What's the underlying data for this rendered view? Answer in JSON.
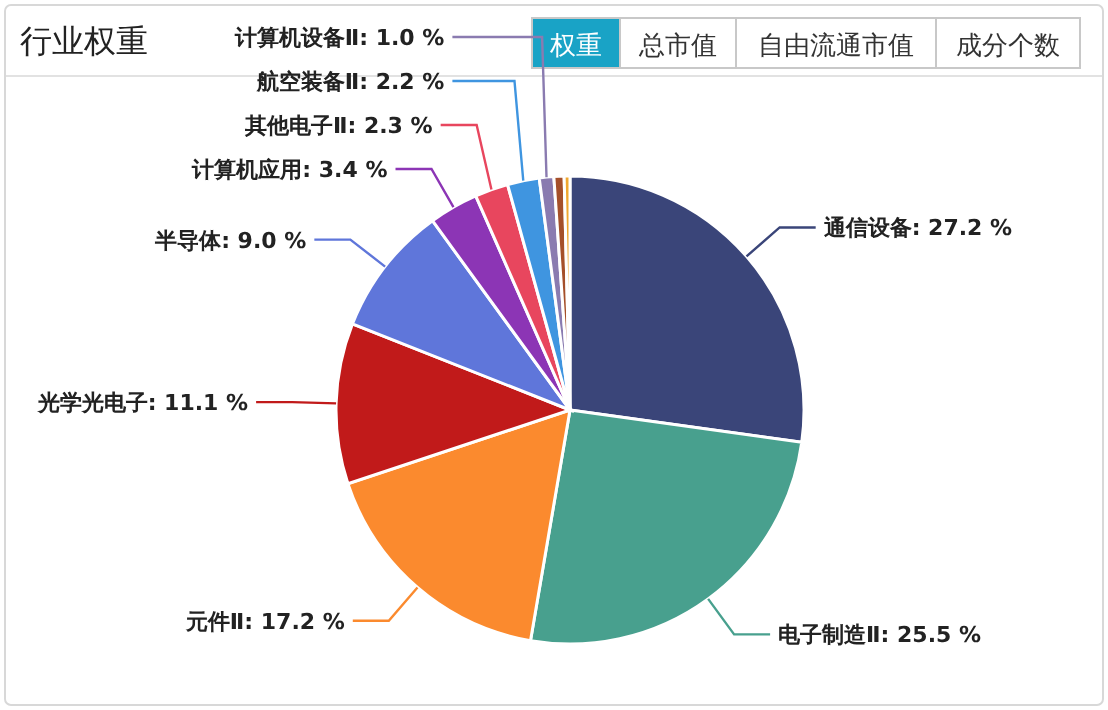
{
  "chart_data": {
    "type": "pie",
    "title": "行业权重",
    "annotations": [
      "权重",
      "总市值",
      "自由流通市值",
      "成分个数"
    ],
    "categories": [
      "通信设备",
      "电子制造Ⅱ",
      "元件Ⅱ",
      "光学光电子",
      "半导体",
      "计算机应用",
      "其他电子Ⅱ",
      "航空装备Ⅱ",
      "计算机设备Ⅱ",
      null,
      null
    ],
    "values": [
      27.2,
      25.5,
      17.2,
      11.1,
      9.0,
      3.4,
      2.3,
      2.2,
      1.0,
      0.7,
      0.4
    ],
    "value_labels": [
      "27.2 %",
      "25.5 %",
      "17.2 %",
      "11.1 %",
      "9.0 %",
      "3.4 %",
      "2.3 %",
      "2.2 %",
      "1.0 %",
      null,
      null
    ],
    "colors": [
      "#3a4579",
      "#48a08e",
      "#fb8a2e",
      "#c11a1a",
      "#5f76da",
      "#8c35b5",
      "#e8465e",
      "#3f95e0",
      "#8a7bb0",
      "#a5502a",
      "#f0a830"
    ]
  }
}
